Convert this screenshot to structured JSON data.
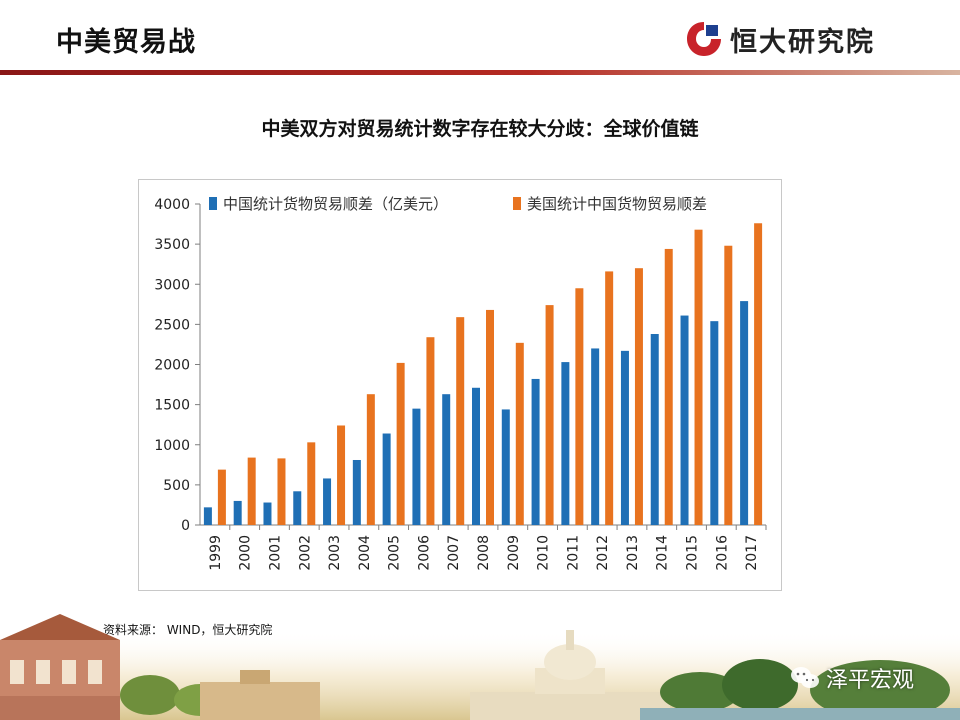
{
  "slide": {
    "title": "中美贸易战",
    "brand_name": "恒大研究院",
    "source_note": "资料来源： WIND，恒大研究院",
    "watermark": "泽平宏观"
  },
  "colors": {
    "series_china": "#1f6fb5",
    "series_us": "#e8731f",
    "header_rule": "#9a1c1c",
    "brand_red": "#c8232a"
  },
  "chart_data": {
    "type": "bar",
    "title": "中美双方对贸易统计数字存在较大分歧：全球价值链",
    "xlabel": "",
    "ylabel": "",
    "ylim": [
      0,
      4000
    ],
    "yticks": [
      0,
      500,
      1000,
      1500,
      2000,
      2500,
      3000,
      3500,
      4000
    ],
    "grid": false,
    "legend_position": "top",
    "categories": [
      "1999",
      "2000",
      "2001",
      "2002",
      "2003",
      "2004",
      "2005",
      "2006",
      "2007",
      "2008",
      "2009",
      "2010",
      "2011",
      "2012",
      "2013",
      "2014",
      "2015",
      "2016",
      "2017"
    ],
    "series": [
      {
        "name": "中国统计货物贸易顺差（亿美元）",
        "color": "#1f6fb5",
        "values": [
          220,
          300,
          280,
          420,
          580,
          810,
          1140,
          1450,
          1630,
          1710,
          1440,
          1820,
          2030,
          2200,
          2170,
          2380,
          2610,
          2540,
          2790
        ]
      },
      {
        "name": "美国统计中国货物贸易顺差",
        "color": "#e8731f",
        "values": [
          690,
          840,
          830,
          1030,
          1240,
          1630,
          2020,
          2340,
          2590,
          2680,
          2270,
          2740,
          2950,
          3160,
          3200,
          3440,
          3680,
          3480,
          3760
        ]
      }
    ]
  }
}
